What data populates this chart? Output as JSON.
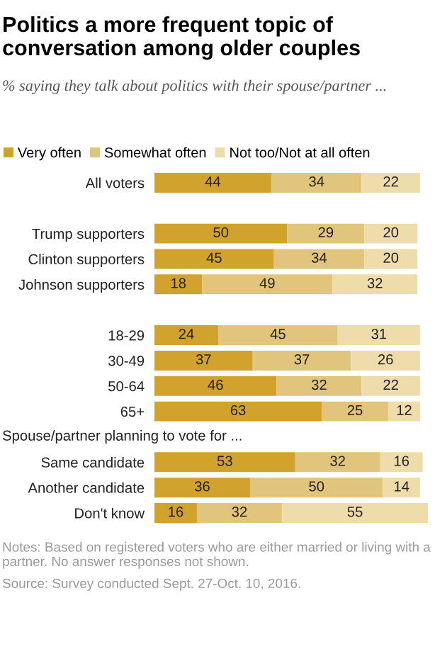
{
  "chart_data": {
    "type": "bar",
    "orientation": "horizontal",
    "stacked": true,
    "data_labels": true,
    "legend": "top left",
    "tick_labels": "y",
    "title": "Politics a more frequent topic of conversation among older couples",
    "subtitle": "% saying they talk about politics with their spouse/partner ...",
    "categories": [
      "All voters",
      null,
      "Trump supporters",
      "Clinton supporters",
      "Johnson supporters",
      null,
      "18-29",
      "30-49",
      "50-64",
      "65+",
      "Spouse/partner planning to vote for ...",
      "Same candidate",
      "Another candidate",
      "Don't know"
    ],
    "series": [
      {
        "name": "Very often",
        "color": "#d1a32c",
        "values": [
          44,
          null,
          50,
          45,
          18,
          null,
          24,
          37,
          46,
          63,
          null,
          53,
          36,
          16
        ]
      },
      {
        "name": "Somewhat often",
        "color": "#e2c57c",
        "values": [
          34,
          null,
          29,
          34,
          49,
          null,
          45,
          37,
          32,
          25,
          null,
          32,
          50,
          32
        ]
      },
      {
        "name": "Not too/Not at all often",
        "color": "#eedcab",
        "values": [
          22,
          null,
          20,
          20,
          32,
          null,
          31,
          26,
          22,
          12,
          null,
          16,
          14,
          55
        ]
      }
    ],
    "annotations": [
      "Notes: Based on registered voters who are either married or living with a partner. No answer responses not shown.",
      "Source: Survey conducted Sept. 27-Oct. 10, 2016."
    ]
  }
}
